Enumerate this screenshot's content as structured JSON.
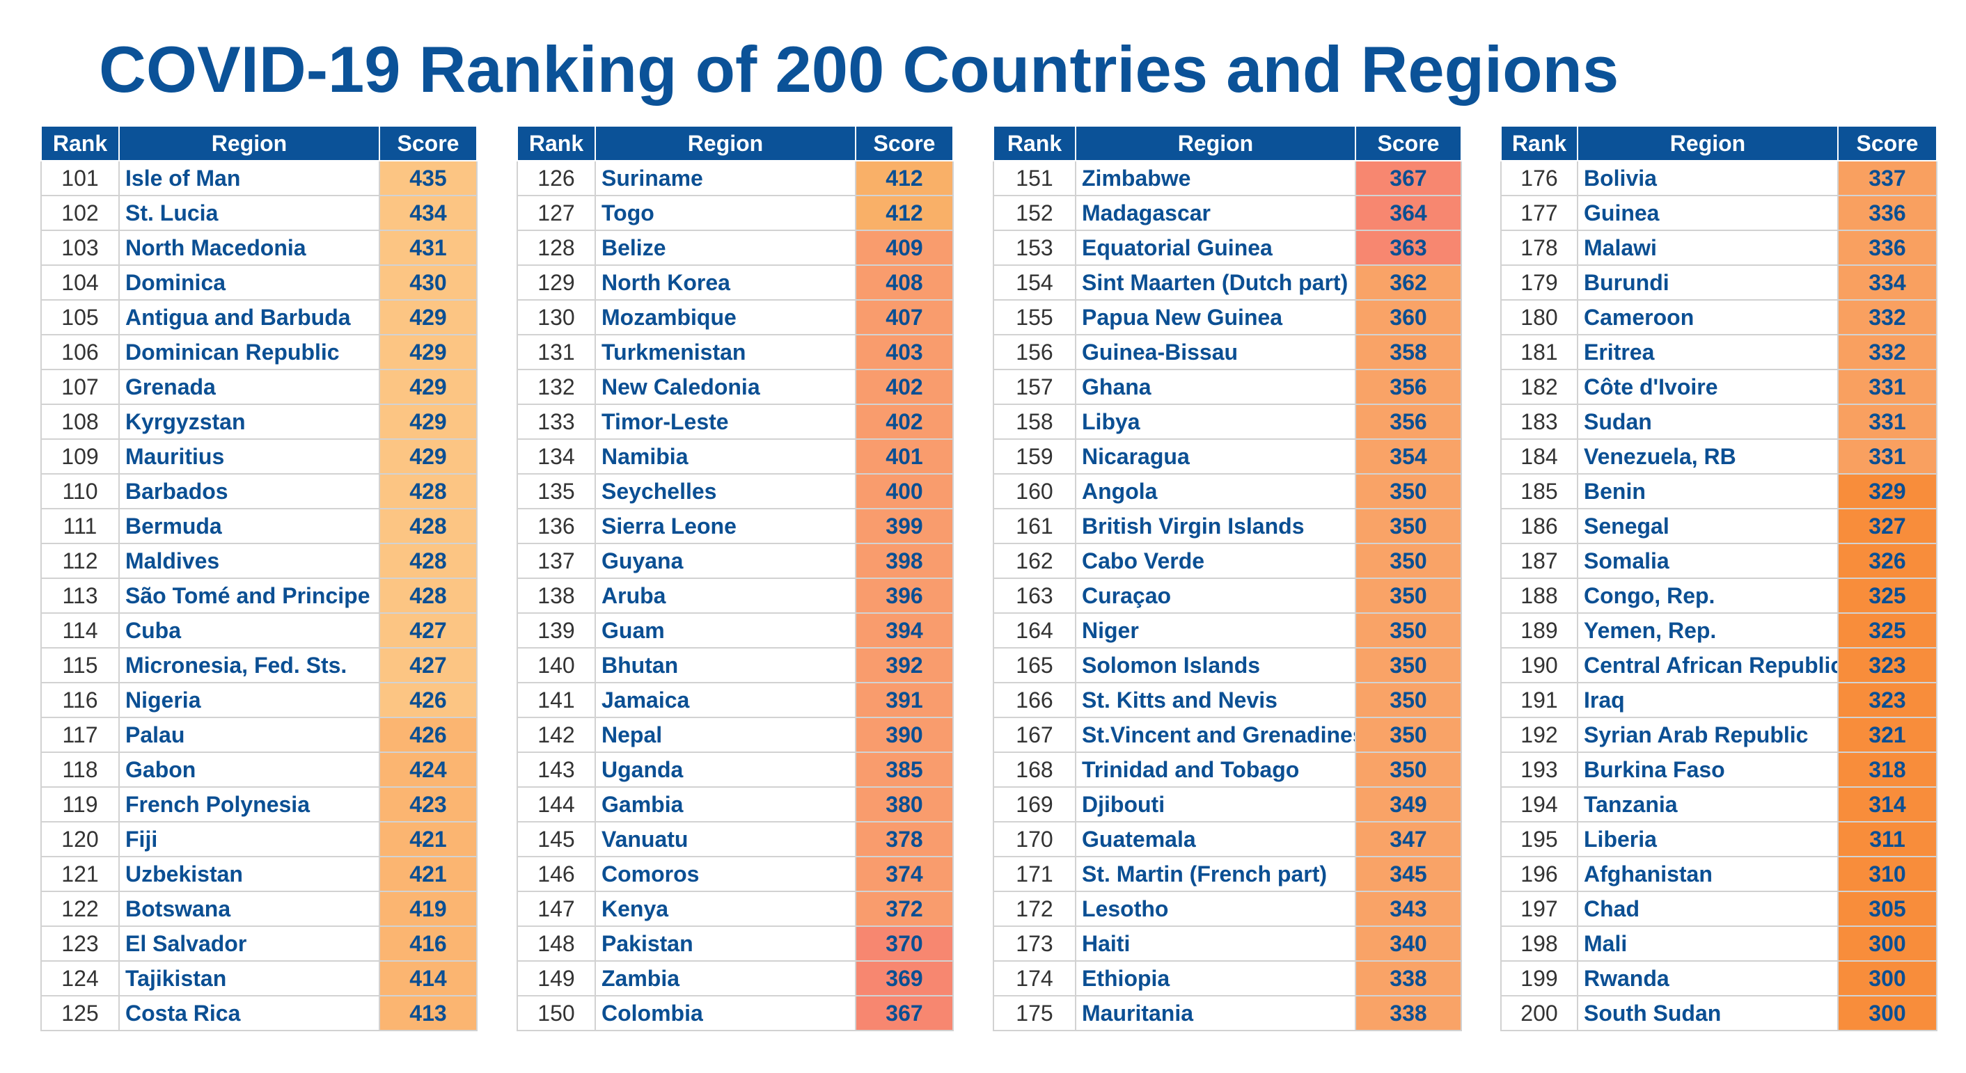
{
  "title": "COVID-19 Ranking of 200 Countries and Regions",
  "chart_data": {
    "type": "table",
    "title": "COVID-19 Ranking of 200 Countries and Regions",
    "columns": [
      "Rank",
      "Region",
      "Score"
    ],
    "tables": [
      {
        "rows": [
          {
            "rank": 101,
            "region": "Isle of Man",
            "score": 435,
            "color": "#fcc583"
          },
          {
            "rank": 102,
            "region": "St. Lucia",
            "score": 434,
            "color": "#fcc583"
          },
          {
            "rank": 103,
            "region": "North Macedonia",
            "score": 431,
            "color": "#fcc583"
          },
          {
            "rank": 104,
            "region": "Dominica",
            "score": 430,
            "color": "#fcc583"
          },
          {
            "rank": 105,
            "region": "Antigua and Barbuda",
            "score": 429,
            "color": "#fcc583"
          },
          {
            "rank": 106,
            "region": "Dominican Republic",
            "score": 429,
            "color": "#fcc583"
          },
          {
            "rank": 107,
            "region": "Grenada",
            "score": 429,
            "color": "#fcc583"
          },
          {
            "rank": 108,
            "region": "Kyrgyzstan",
            "score": 429,
            "color": "#fcc583"
          },
          {
            "rank": 109,
            "region": "Mauritius",
            "score": 429,
            "color": "#fcc583"
          },
          {
            "rank": 110,
            "region": "Barbados",
            "score": 428,
            "color": "#fcc583"
          },
          {
            "rank": 111,
            "region": "Bermuda",
            "score": 428,
            "color": "#fcc583"
          },
          {
            "rank": 112,
            "region": "Maldives",
            "score": 428,
            "color": "#fcc583"
          },
          {
            "rank": 113,
            "region": "São Tomé and Principe",
            "score": 428,
            "color": "#fcc583"
          },
          {
            "rank": 114,
            "region": "Cuba",
            "score": 427,
            "color": "#fcc583"
          },
          {
            "rank": 115,
            "region": "Micronesia, Fed. Sts.",
            "score": 427,
            "color": "#fcc583"
          },
          {
            "rank": 116,
            "region": "Nigeria",
            "score": 426,
            "color": "#fcc583"
          },
          {
            "rank": 117,
            "region": "Palau",
            "score": 426,
            "color": "#fbb571"
          },
          {
            "rank": 118,
            "region": "Gabon",
            "score": 424,
            "color": "#fbb571"
          },
          {
            "rank": 119,
            "region": "French Polynesia",
            "score": 423,
            "color": "#fbb571"
          },
          {
            "rank": 120,
            "region": "Fiji",
            "score": 421,
            "color": "#fbb571"
          },
          {
            "rank": 121,
            "region": "Uzbekistan",
            "score": 421,
            "color": "#fbb571"
          },
          {
            "rank": 122,
            "region": "Botswana",
            "score": 419,
            "color": "#fbb571"
          },
          {
            "rank": 123,
            "region": "El Salvador",
            "score": 416,
            "color": "#fbb571"
          },
          {
            "rank": 124,
            "region": "Tajikistan",
            "score": 414,
            "color": "#fbb571"
          },
          {
            "rank": 125,
            "region": "Costa Rica",
            "score": 413,
            "color": "#fbb571"
          }
        ]
      },
      {
        "rows": [
          {
            "rank": 126,
            "region": "Suriname",
            "score": 412,
            "color": "#f9b068"
          },
          {
            "rank": 127,
            "region": "Togo",
            "score": 412,
            "color": "#f9b068"
          },
          {
            "rank": 128,
            "region": "Belize",
            "score": 409,
            "color": "#f99c6d"
          },
          {
            "rank": 129,
            "region": "North Korea",
            "score": 408,
            "color": "#f99c6d"
          },
          {
            "rank": 130,
            "region": "Mozambique",
            "score": 407,
            "color": "#f99c6d"
          },
          {
            "rank": 131,
            "region": "Turkmenistan",
            "score": 403,
            "color": "#f99c6d"
          },
          {
            "rank": 132,
            "region": "New Caledonia",
            "score": 402,
            "color": "#f99c6d"
          },
          {
            "rank": 133,
            "region": "Timor-Leste",
            "score": 402,
            "color": "#f99c6d"
          },
          {
            "rank": 134,
            "region": "Namibia",
            "score": 401,
            "color": "#f99c6d"
          },
          {
            "rank": 135,
            "region": "Seychelles",
            "score": 400,
            "color": "#f99c6d"
          },
          {
            "rank": 136,
            "region": "Sierra Leone",
            "score": 399,
            "color": "#f99c6d"
          },
          {
            "rank": 137,
            "region": "Guyana",
            "score": 398,
            "color": "#f99c6d"
          },
          {
            "rank": 138,
            "region": "Aruba",
            "score": 396,
            "color": "#f99c6d"
          },
          {
            "rank": 139,
            "region": "Guam",
            "score": 394,
            "color": "#f99c6d"
          },
          {
            "rank": 140,
            "region": "Bhutan",
            "score": 392,
            "color": "#f99c6d"
          },
          {
            "rank": 141,
            "region": "Jamaica",
            "score": 391,
            "color": "#f99c6d"
          },
          {
            "rank": 142,
            "region": "Nepal",
            "score": 390,
            "color": "#f99c6d"
          },
          {
            "rank": 143,
            "region": "Uganda",
            "score": 385,
            "color": "#f99c6d"
          },
          {
            "rank": 144,
            "region": "Gambia",
            "score": 380,
            "color": "#f99c6d"
          },
          {
            "rank": 145,
            "region": "Vanuatu",
            "score": 378,
            "color": "#f99c6d"
          },
          {
            "rank": 146,
            "region": "Comoros",
            "score": 374,
            "color": "#f99c6d"
          },
          {
            "rank": 147,
            "region": "Kenya",
            "score": 372,
            "color": "#f99c6d"
          },
          {
            "rank": 148,
            "region": "Pakistan",
            "score": 370,
            "color": "#f78770"
          },
          {
            "rank": 149,
            "region": "Zambia",
            "score": 369,
            "color": "#f78770"
          },
          {
            "rank": 150,
            "region": "Colombia",
            "score": 367,
            "color": "#f78770"
          }
        ]
      },
      {
        "rows": [
          {
            "rank": 151,
            "region": "Zimbabwe",
            "score": 367,
            "color": "#f78770"
          },
          {
            "rank": 152,
            "region": "Madagascar",
            "score": 364,
            "color": "#f78770"
          },
          {
            "rank": 153,
            "region": "Equatorial Guinea",
            "score": 363,
            "color": "#f78770"
          },
          {
            "rank": 154,
            "region": "Sint Maarten (Dutch part)",
            "score": 362,
            "color": "#f9a367"
          },
          {
            "rank": 155,
            "region": "Papua New Guinea",
            "score": 360,
            "color": "#f9a367"
          },
          {
            "rank": 156,
            "region": "Guinea-Bissau",
            "score": 358,
            "color": "#f9a367"
          },
          {
            "rank": 157,
            "region": "Ghana",
            "score": 356,
            "color": "#f9a367"
          },
          {
            "rank": 158,
            "region": "Libya",
            "score": 356,
            "color": "#f9a367"
          },
          {
            "rank": 159,
            "region": "Nicaragua",
            "score": 354,
            "color": "#f9a367"
          },
          {
            "rank": 160,
            "region": "Angola",
            "score": 350,
            "color": "#f9a367"
          },
          {
            "rank": 161,
            "region": "British Virgin Islands",
            "score": 350,
            "color": "#f9a367"
          },
          {
            "rank": 162,
            "region": "Cabo Verde",
            "score": 350,
            "color": "#f9a367"
          },
          {
            "rank": 163,
            "region": "Curaçao",
            "score": 350,
            "color": "#f9a367"
          },
          {
            "rank": 164,
            "region": "Niger",
            "score": 350,
            "color": "#f9a367"
          },
          {
            "rank": 165,
            "region": "Solomon Islands",
            "score": 350,
            "color": "#f9a367"
          },
          {
            "rank": 166,
            "region": "St. Kitts and Nevis",
            "score": 350,
            "color": "#f9a367"
          },
          {
            "rank": 167,
            "region": "St.Vincent and Grenadines",
            "score": 350,
            "color": "#f9a367"
          },
          {
            "rank": 168,
            "region": "Trinidad and Tobago",
            "score": 350,
            "color": "#f9a367"
          },
          {
            "rank": 169,
            "region": "Djibouti",
            "score": 349,
            "color": "#f9a367"
          },
          {
            "rank": 170,
            "region": "Guatemala",
            "score": 347,
            "color": "#f9a367"
          },
          {
            "rank": 171,
            "region": "St. Martin (French part)",
            "score": 345,
            "color": "#f9a367"
          },
          {
            "rank": 172,
            "region": "Lesotho",
            "score": 343,
            "color": "#f9a367"
          },
          {
            "rank": 173,
            "region": "Haiti",
            "score": 340,
            "color": "#f9a367"
          },
          {
            "rank": 174,
            "region": "Ethiopia",
            "score": 338,
            "color": "#f9a367"
          },
          {
            "rank": 175,
            "region": "Mauritania",
            "score": 338,
            "color": "#f9a367"
          }
        ]
      },
      {
        "rows": [
          {
            "rank": 176,
            "region": "Bolivia",
            "score": 337,
            "color": "#f9a060"
          },
          {
            "rank": 177,
            "region": "Guinea",
            "score": 336,
            "color": "#f9a060"
          },
          {
            "rank": 178,
            "region": "Malawi",
            "score": 336,
            "color": "#f9a060"
          },
          {
            "rank": 179,
            "region": "Burundi",
            "score": 334,
            "color": "#f9a060"
          },
          {
            "rank": 180,
            "region": "Cameroon",
            "score": 332,
            "color": "#f9a060"
          },
          {
            "rank": 181,
            "region": "Eritrea",
            "score": 332,
            "color": "#f9a060"
          },
          {
            "rank": 182,
            "region": "Côte d'Ivoire",
            "score": 331,
            "color": "#f9a060"
          },
          {
            "rank": 183,
            "region": "Sudan",
            "score": 331,
            "color": "#f9a060"
          },
          {
            "rank": 184,
            "region": "Venezuela, RB",
            "score": 331,
            "color": "#f9a060"
          },
          {
            "rank": 185,
            "region": "Benin",
            "score": 329,
            "color": "#f88d3b"
          },
          {
            "rank": 186,
            "region": "Senegal",
            "score": 327,
            "color": "#f88d3b"
          },
          {
            "rank": 187,
            "region": "Somalia",
            "score": 326,
            "color": "#f88d3b"
          },
          {
            "rank": 188,
            "region": "Congo, Rep.",
            "score": 325,
            "color": "#f88d3b"
          },
          {
            "rank": 189,
            "region": "Yemen, Rep.",
            "score": 325,
            "color": "#f88d3b"
          },
          {
            "rank": 190,
            "region": "Central African Republic",
            "score": 323,
            "color": "#f88d3b"
          },
          {
            "rank": 191,
            "region": "Iraq",
            "score": 323,
            "color": "#f88d3b"
          },
          {
            "rank": 192,
            "region": "Syrian Arab Republic",
            "score": 321,
            "color": "#f88d3b"
          },
          {
            "rank": 193,
            "region": "Burkina Faso",
            "score": 318,
            "color": "#f88d3b"
          },
          {
            "rank": 194,
            "region": "Tanzania",
            "score": 314,
            "color": "#f88d3b"
          },
          {
            "rank": 195,
            "region": "Liberia",
            "score": 311,
            "color": "#f88d3b"
          },
          {
            "rank": 196,
            "region": "Afghanistan",
            "score": 310,
            "color": "#f88d3b"
          },
          {
            "rank": 197,
            "region": "Chad",
            "score": 305,
            "color": "#f88d3b"
          },
          {
            "rank": 198,
            "region": "Mali",
            "score": 300,
            "color": "#f88d3b"
          },
          {
            "rank": 199,
            "region": "Rwanda",
            "score": 300,
            "color": "#f88d3b"
          },
          {
            "rank": 200,
            "region": "South Sudan",
            "score": 300,
            "color": "#f88d3b"
          }
        ]
      }
    ]
  }
}
